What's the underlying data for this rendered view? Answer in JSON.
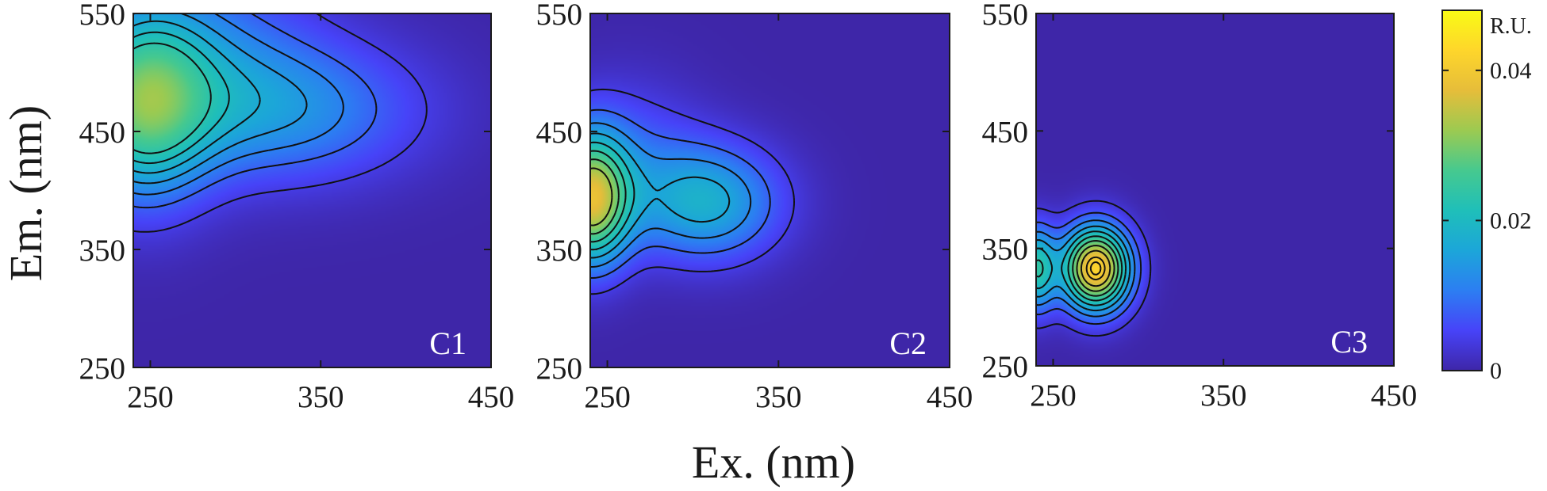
{
  "chart_data": [
    {
      "type": "heatmap",
      "panel_label": "C1",
      "xlabel": "Ex. (nm)",
      "ylabel": "Em. (nm)",
      "xlim": [
        240,
        450
      ],
      "ylim": [
        250,
        550
      ],
      "xticks": [
        250,
        350,
        450
      ],
      "yticks": [
        250,
        350,
        450,
        550
      ],
      "peaks": [
        {
          "ex": 245,
          "em": 472,
          "intensity": 0.024,
          "sigma_ex": 28,
          "sigma_em": 55
        },
        {
          "ex": 330,
          "em": 468,
          "intensity": 0.012,
          "sigma_ex": 55,
          "sigma_em": 42
        },
        {
          "ex": 280,
          "em": 520,
          "intensity": 0.008,
          "sigma_ex": 45,
          "sigma_em": 60
        }
      ],
      "contour_levels": [
        0.004,
        0.008,
        0.011,
        0.014,
        0.017,
        0.02,
        0.023
      ]
    },
    {
      "type": "heatmap",
      "panel_label": "C2",
      "xlim": [
        240,
        450
      ],
      "ylim": [
        250,
        550
      ],
      "xticks": [
        250,
        350,
        450
      ],
      "yticks": [
        250,
        350,
        450,
        550
      ],
      "peaks": [
        {
          "ex": 240,
          "em": 392,
          "intensity": 0.034,
          "sigma_ex": 16,
          "sigma_em": 38
        },
        {
          "ex": 308,
          "em": 390,
          "intensity": 0.017,
          "sigma_ex": 30,
          "sigma_em": 34
        },
        {
          "ex": 262,
          "em": 430,
          "intensity": 0.006,
          "sigma_ex": 30,
          "sigma_em": 45
        }
      ],
      "contour_levels": [
        0.004,
        0.008,
        0.012,
        0.016,
        0.02,
        0.024,
        0.028,
        0.032
      ]
    },
    {
      "type": "heatmap",
      "panel_label": "C3",
      "xlim": [
        240,
        450
      ],
      "ylim": [
        250,
        550
      ],
      "xticks": [
        250,
        350,
        450
      ],
      "yticks": [
        250,
        350,
        450,
        550
      ],
      "peaks": [
        {
          "ex": 275,
          "em": 333,
          "intensity": 0.042,
          "sigma_ex": 14,
          "sigma_em": 25
        },
        {
          "ex": 240,
          "em": 333,
          "intensity": 0.022,
          "sigma_ex": 8,
          "sigma_em": 25
        }
      ],
      "contour_levels": [
        0.003,
        0.007,
        0.011,
        0.015,
        0.019,
        0.023,
        0.027,
        0.031,
        0.035,
        0.039,
        0.041
      ]
    }
  ],
  "colorbar": {
    "label": "R.U.",
    "min": 0,
    "max": 0.048,
    "ticks": [
      0,
      0.02,
      0.04
    ],
    "tick_labels": [
      "0",
      "0.02",
      "0.04"
    ],
    "colormap": [
      "#3e26a8",
      "#4743f8",
      "#2c7ef2",
      "#1ca6d9",
      "#1fbfb9",
      "#46c98f",
      "#9cca51",
      "#e6bd3a",
      "#fed62b",
      "#f9fb15"
    ]
  }
}
